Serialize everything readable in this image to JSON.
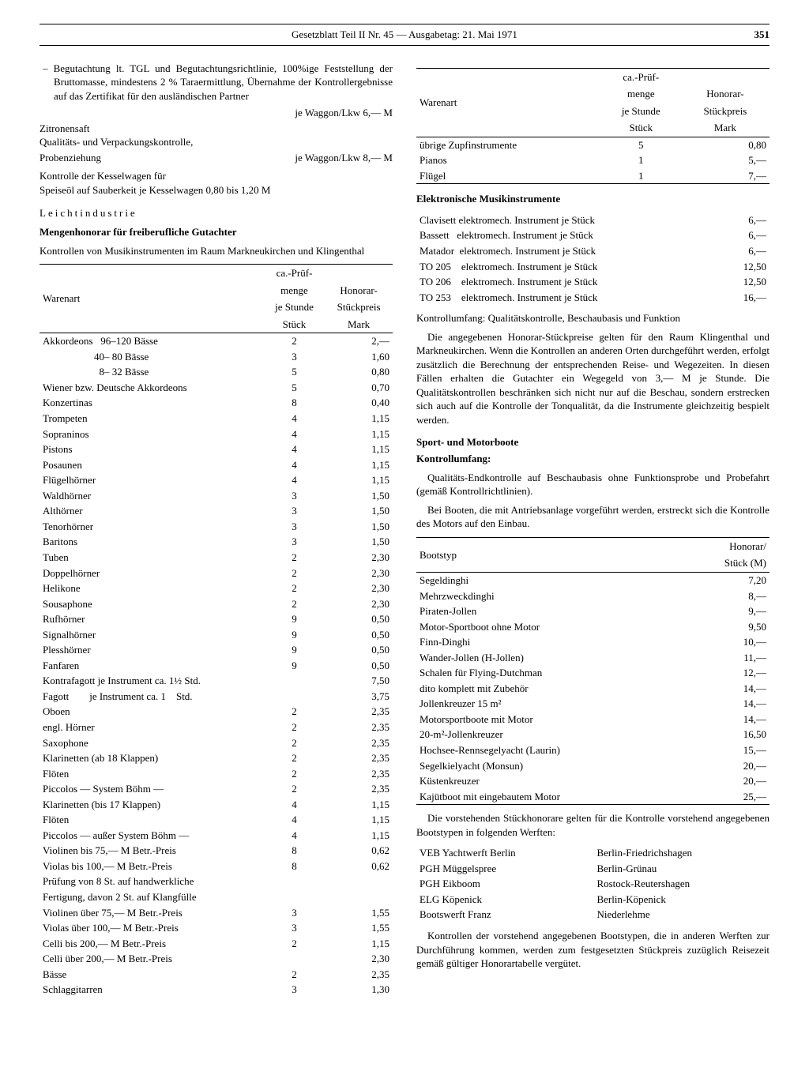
{
  "header": {
    "title": "Gesetzblatt Teil II Nr. 45 — Ausgabetag: 21. Mai 1971",
    "page": "351"
  },
  "left": {
    "bullet": "– Begutachtung lt. TGL und Begutachtungsrichtlinie, 100%ige Feststellung der Bruttomasse, mindestens 2 % Taraermittlung, Übernahme der Kontrollergebnisse auf das Zertifikat für den ausländischen Partner",
    "bullet_price": "je Waggon/Lkw 6,— M",
    "zitrone": "Zitronensaft",
    "qual": "Qualitäts- und Verpackungskontrolle,",
    "proben": "Probenziehung",
    "proben_price": "je Waggon/Lkw 8,— M",
    "kessel": "Kontrolle der Kesselwagen für",
    "kessel2": "Speiseöl auf Sauberkeit   je Kesselwagen 0,80 bis 1,20 M",
    "leicht": "Leichtindustrie",
    "mengen": "Mengenhonorar für freiberufliche Gutachter",
    "kontrollen": "Kontrollen von Musikinstrumenten im Raum Markneukirchen und Klingenthal",
    "th1": "Warenart",
    "th2a": "ca.-Prüf-",
    "th2b": "menge",
    "th2c": "je   Stunde",
    "th2d": "Stück",
    "th3a": "Honorar-",
    "th3b": "Stückpreis",
    "th3c": "Mark",
    "rows": [
      [
        "Akkordeons   96–120 Bässe",
        "2",
        "2,—"
      ],
      [
        "                    40– 80 Bässe",
        "3",
        "1,60"
      ],
      [
        "                      8– 32 Bässe",
        "5",
        "0,80"
      ],
      [
        "Wiener bzw. Deutsche Akkordeons",
        "5",
        "0,70"
      ],
      [
        "Konzertinas",
        "8",
        "0,40"
      ],
      [
        "Trompeten",
        "4",
        "1,15"
      ],
      [
        "Sopraninos",
        "4",
        "1,15"
      ],
      [
        "Pistons",
        "4",
        "1,15"
      ],
      [
        "Posaunen",
        "4",
        "1,15"
      ],
      [
        "Flügelhörner",
        "4",
        "1,15"
      ],
      [
        "Waldhörner",
        "3",
        "1,50"
      ],
      [
        "Althörner",
        "3",
        "1,50"
      ],
      [
        "Tenorhörner",
        "3",
        "1,50"
      ],
      [
        "Baritons",
        "3",
        "1,50"
      ],
      [
        "Tuben",
        "2",
        "2,30"
      ],
      [
        "Doppelhörner",
        "2",
        "2,30"
      ],
      [
        "Helikone",
        "2",
        "2,30"
      ],
      [
        "Sousaphone",
        "2",
        "2,30"
      ],
      [
        "Rufhörner",
        "9",
        "0,50"
      ],
      [
        "Signalhörner",
        "9",
        "0,50"
      ],
      [
        "Plesshörner",
        "9",
        "0,50"
      ],
      [
        "Fanfaren",
        "9",
        "0,50"
      ],
      [
        "Kontrafagott je Instrument ca. 1½ Std.",
        "",
        "7,50"
      ],
      [
        "Fagott        je Instrument ca. 1    Std.",
        "",
        "3,75"
      ],
      [
        "Oboen",
        "2",
        "2,35"
      ],
      [
        "engl. Hörner",
        "2",
        "2,35"
      ],
      [
        "Saxophone",
        "2",
        "2,35"
      ],
      [
        "Klarinetten (ab 18 Klappen)",
        "2",
        "2,35"
      ],
      [
        "Flöten",
        "2",
        "2,35"
      ],
      [
        "Piccolos — System Böhm —",
        "2",
        "2,35"
      ],
      [
        "Klarinetten (bis 17 Klappen)",
        "4",
        "1,15"
      ],
      [
        "Flöten",
        "4",
        "1,15"
      ],
      [
        "Piccolos — außer System Böhm —",
        "4",
        "1,15"
      ],
      [
        "Violinen bis 75,— M Betr.-Preis",
        "8",
        "0,62"
      ],
      [
        "Violas bis 100,— M Betr.-Preis",
        "8",
        "0,62"
      ],
      [
        "Prüfung von 8 St. auf handwerkliche",
        "",
        ""
      ],
      [
        "Fertigung, davon 2 St. auf Klangfülle",
        "",
        ""
      ],
      [
        "Violinen über 75,— M Betr.-Preis",
        "3",
        "1,55"
      ],
      [
        "Violas über 100,— M Betr.-Preis",
        "3",
        "1,55"
      ],
      [
        "Celli bis 200,— M Betr.-Preis",
        "2",
        "1,15"
      ],
      [
        "Celli über 200,— M Betr.-Preis",
        "",
        "2,30"
      ],
      [
        "Bässe",
        "2",
        "2,35"
      ],
      [
        "Schlaggitarren",
        "3",
        "1,30"
      ]
    ]
  },
  "right": {
    "th1": "Warenart",
    "th2a": "ca.-Prüf-",
    "th2b": "menge",
    "th2c": "je   Stunde",
    "th2d": "Stück",
    "th3a": "Honorar-",
    "th3b": "Stückpreis",
    "th3c": "Mark",
    "rows_top": [
      [
        "übrige Zupfinstrumente",
        "5",
        "0,80"
      ],
      [
        "Pianos",
        "1",
        "5,—"
      ],
      [
        "Flügel",
        "1",
        "7,—"
      ]
    ],
    "elek_title": "Elektronische Musikinstrumente",
    "elek_rows": [
      [
        "Clavisett elektromech. Instrument je Stück",
        "6,—"
      ],
      [
        "Bassett   elektromech. Instrument je Stück",
        "6,—"
      ],
      [
        "Matador  elektromech. Instrument je Stück",
        "6,—"
      ],
      [
        "TO 205    elektromech. Instrument je Stück",
        "12,50"
      ],
      [
        "TO 206    elektromech. Instrument je Stück",
        "12,50"
      ],
      [
        "TO 253    elektromech. Instrument je Stück",
        "16,—"
      ]
    ],
    "kontrollumf": "Kontrollumfang: Qualitätskontrolle, Beschaubasis und Funktion",
    "honorar_para": "Die angegebenen Honorar-Stückpreise gelten für den Raum Klingenthal und Markneukirchen. Wenn die Kontrollen an anderen Orten durchgeführt werden, erfolgt zusätzlich die Berechnung der entsprechenden Reise- und Wegezeiten. In diesen Fällen erhalten die Gutachter ein Wegegeld von 3,— M je Stunde. Die Qualitätskontrollen beschränken sich nicht nur auf die Beschau, sondern erstrecken sich auch auf die Kontrolle der Tonqualität, da die Instrumente gleichzeitig bespielt werden.",
    "sport_title": "Sport- und Motorboote",
    "kontroll_title": "Kontrollumfang:",
    "sport_p1": "Qualitäts-Endkontrolle auf Beschaubasis ohne Funktionsprobe und Probefahrt (gemäß Kontrollrichtlinien).",
    "sport_p2": "Bei Booten, die mit Antriebsanlage vorgeführt werden, erstreckt sich die Kontrolle des Motors auf den Einbau.",
    "boat_th1": "Bootstyp",
    "boat_th2a": "Honorar/",
    "boat_th2b": "Stück (M)",
    "boat_rows": [
      [
        "Segeldinghi",
        "7,20"
      ],
      [
        "Mehrzweckdinghi",
        "8,—"
      ],
      [
        "Piraten-Jollen",
        "9,—"
      ],
      [
        "Motor-Sportboot ohne Motor",
        "9,50"
      ],
      [
        "Finn-Dinghi",
        "10,—"
      ],
      [
        "Wander-Jollen (H-Jollen)",
        "11,—"
      ],
      [
        "Schalen für Flying-Dutchman",
        "12,—"
      ],
      [
        "dito komplett mit Zubehör",
        "14,—"
      ],
      [
        "Jollenkreuzer 15 m²",
        "14,—"
      ],
      [
        "Motorsportboote mit Motor",
        "14,—"
      ],
      [
        "20-m²-Jollenkreuzer",
        "16,50"
      ],
      [
        "Hochsee-Rennsegelyacht (Laurin)",
        "15,—"
      ],
      [
        "Segelkielyacht (Monsun)",
        "20,—"
      ],
      [
        "Küstenkreuzer",
        "20,—"
      ],
      [
        "Kajütboot mit eingebautem Motor",
        "25,—"
      ]
    ],
    "werft_para": "Die vorstehenden Stückhonorare gelten für die Kontrolle vorstehend angegebenen Bootstypen in folgenden Werften:",
    "werft_rows": [
      [
        "VEB Yachtwerft Berlin",
        "Berlin-Friedrichshagen"
      ],
      [
        "PGH Müggelspree",
        "Berlin-Grünau"
      ],
      [
        "PGH Eikboom",
        "Rostock-Reutershagen"
      ],
      [
        "ELG Köpenick",
        "Berlin-Köpenick"
      ],
      [
        "Bootswerft Franz",
        "Niederlehme"
      ]
    ],
    "final_para": "Kontrollen der vorstehend angegebenen Bootstypen, die in anderen Werften zur Durchführung kommen, werden zum festgesetzten Stückpreis zuzüglich Reisezeit gemäß gültiger Honorartabelle vergütet."
  }
}
